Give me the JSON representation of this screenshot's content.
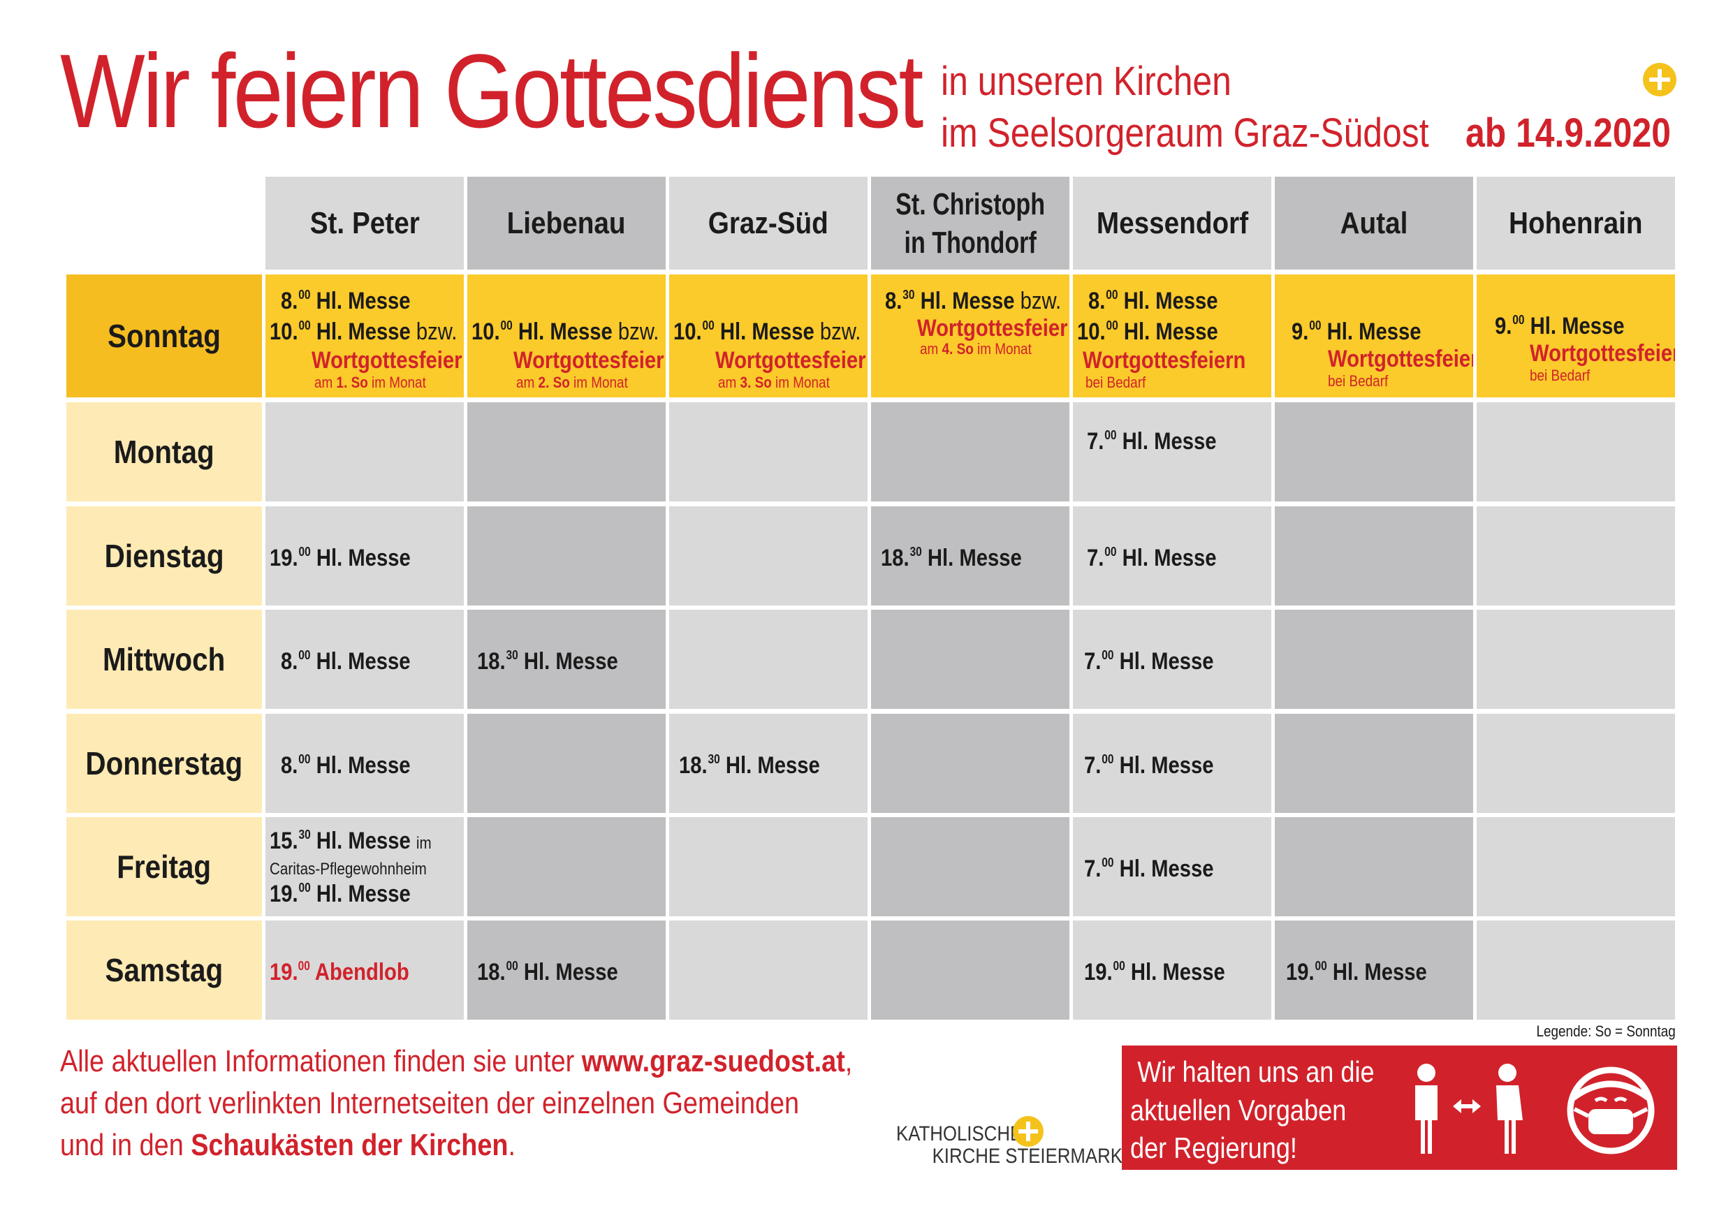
{
  "header": {
    "title": "Wir feiern Gottesdienst",
    "subtitle_line1": "in unseren Kirchen",
    "subtitle_line2": "im Seelsorgeraum Graz-Südost",
    "date": "ab 14.9.2020"
  },
  "columns": [
    "St. Peter",
    "Liebenau",
    "Graz-Süd",
    "St. Christoph",
    "Messendorf",
    "Autal",
    "Hohenrain"
  ],
  "columns_line2": {
    "st_christoph": "in Thondorf"
  },
  "days": [
    "Sonntag",
    "Montag",
    "Dienstag",
    "Mittwoch",
    "Donnerstag",
    "Freitag",
    "Samstag"
  ],
  "common": {
    "hl_messe": "Hl. Messe",
    "bzw": "bzw.",
    "wortgottesfeier": "Wortgottesfeier",
    "wortgottesfeiern": "Wortgottesfeiern",
    "bei_bedarf": "bei Bedarf",
    "am": "am",
    "im_monat": "im Monat",
    "so1": "1. So",
    "so2": "2. So",
    "so3": "3. So",
    "so4": "4. So",
    "im": "im",
    "caritas": "Caritas-Pflegewohnheim",
    "abendlob": "Abendlob"
  },
  "times": {
    "h7": "7.",
    "h8": "8.",
    "h9": "9.",
    "h10": "10.",
    "h15": "15.",
    "h18": "18.",
    "h19": "19.",
    "m00": "00",
    "m30": "30"
  },
  "legend": "Legende: So = Sonntag",
  "footer": {
    "line1_a": "Alle aktuellen Informationen finden sie unter ",
    "url": "www.graz-suedost.at",
    "line1_b": ",",
    "line2": "auf den dort verlinkten Internetseiten der einzelnen Gemeinden",
    "line3_a": "und in den ",
    "line3_b": "Schaukästen der Kirchen",
    "line3_c": ".",
    "logo_line1": "KATHOLISCHE",
    "logo_line2": "KIRCHE STEIERMARK",
    "notice_line1": "Wir halten uns an die",
    "notice_line2": "aktuellen Vorgaben",
    "notice_line3": "der Regierung!"
  },
  "colors": {
    "red": "#d1222b",
    "yellow": "#fbca2b",
    "cream": "#feeab4",
    "grey_light": "#d9d9d9",
    "grey_dark": "#bfbfc1"
  },
  "icons": [
    "cross-logo-icon",
    "distance-people-icon",
    "face-mask-icon"
  ]
}
